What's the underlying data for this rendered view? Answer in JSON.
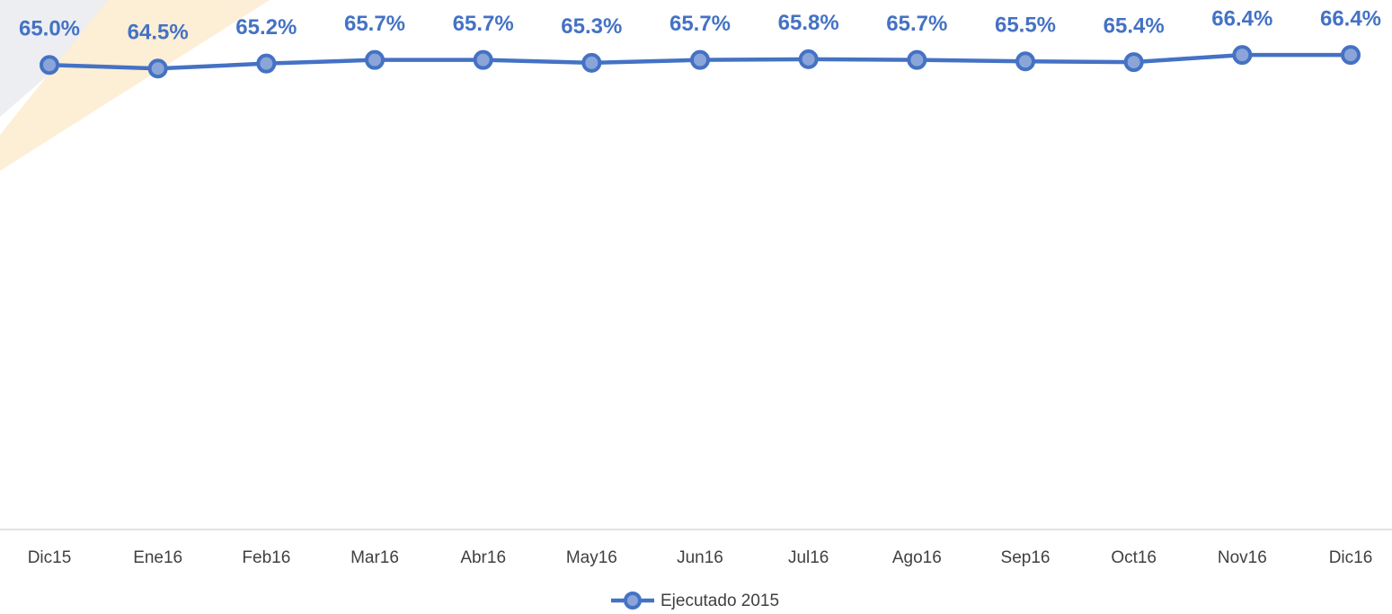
{
  "chart_data": {
    "type": "line",
    "categories": [
      "Dic15",
      "Ene16",
      "Feb16",
      "Mar16",
      "Abr16",
      "May16",
      "Jun16",
      "Jul16",
      "Ago16",
      "Sep16",
      "Oct16",
      "Nov16",
      "Dic16"
    ],
    "series": [
      {
        "name": "Ejecutado 2015",
        "color": "#4472c4",
        "values": [
          65.0,
          64.5,
          65.2,
          65.7,
          65.7,
          65.3,
          65.7,
          65.8,
          65.7,
          65.5,
          65.4,
          66.4,
          66.4
        ],
        "value_labels": [
          "65.0%",
          "64.5%",
          "65.2%",
          "65.7%",
          "65.7%",
          "65.3%",
          "65.7%",
          "65.8%",
          "65.7%",
          "65.5%",
          "65.4%",
          "66.4%",
          "66.4%"
        ]
      }
    ],
    "ylim": [
      0,
      70
    ],
    "legend": "bottom"
  }
}
